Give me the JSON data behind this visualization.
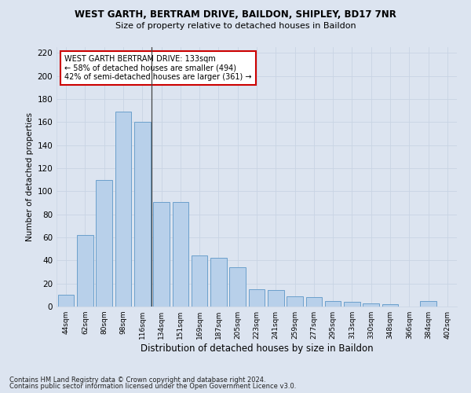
{
  "title_line1": "WEST GARTH, BERTRAM DRIVE, BAILDON, SHIPLEY, BD17 7NR",
  "title_line2": "Size of property relative to detached houses in Baildon",
  "xlabel": "Distribution of detached houses by size in Baildon",
  "ylabel": "Number of detached properties",
  "footer_line1": "Contains HM Land Registry data © Crown copyright and database right 2024.",
  "footer_line2": "Contains public sector information licensed under the Open Government Licence v3.0.",
  "categories": [
    "44sqm",
    "62sqm",
    "80sqm",
    "98sqm",
    "116sqm",
    "134sqm",
    "151sqm",
    "169sqm",
    "187sqm",
    "205sqm",
    "223sqm",
    "241sqm",
    "259sqm",
    "277sqm",
    "295sqm",
    "313sqm",
    "330sqm",
    "348sqm",
    "366sqm",
    "384sqm",
    "402sqm"
  ],
  "values": [
    10,
    62,
    110,
    169,
    160,
    91,
    91,
    44,
    42,
    34,
    15,
    14,
    9,
    8,
    5,
    4,
    3,
    2,
    0,
    5,
    0
  ],
  "bar_color": "#b8d0ea",
  "bar_edge_color": "#6ca0cc",
  "grid_color": "#c8d4e4",
  "background_color": "#dce4f0",
  "property_line_index": 5,
  "annotation_title": "WEST GARTH BERTRAM DRIVE: 133sqm",
  "annotation_line2": "← 58% of detached houses are smaller (494)",
  "annotation_line3": "42% of semi-detached houses are larger (361) →",
  "annotation_box_color": "#ffffff",
  "annotation_border_color": "#cc0000",
  "ylim": [
    0,
    225
  ],
  "yticks": [
    0,
    20,
    40,
    60,
    80,
    100,
    120,
    140,
    160,
    180,
    200,
    220
  ]
}
